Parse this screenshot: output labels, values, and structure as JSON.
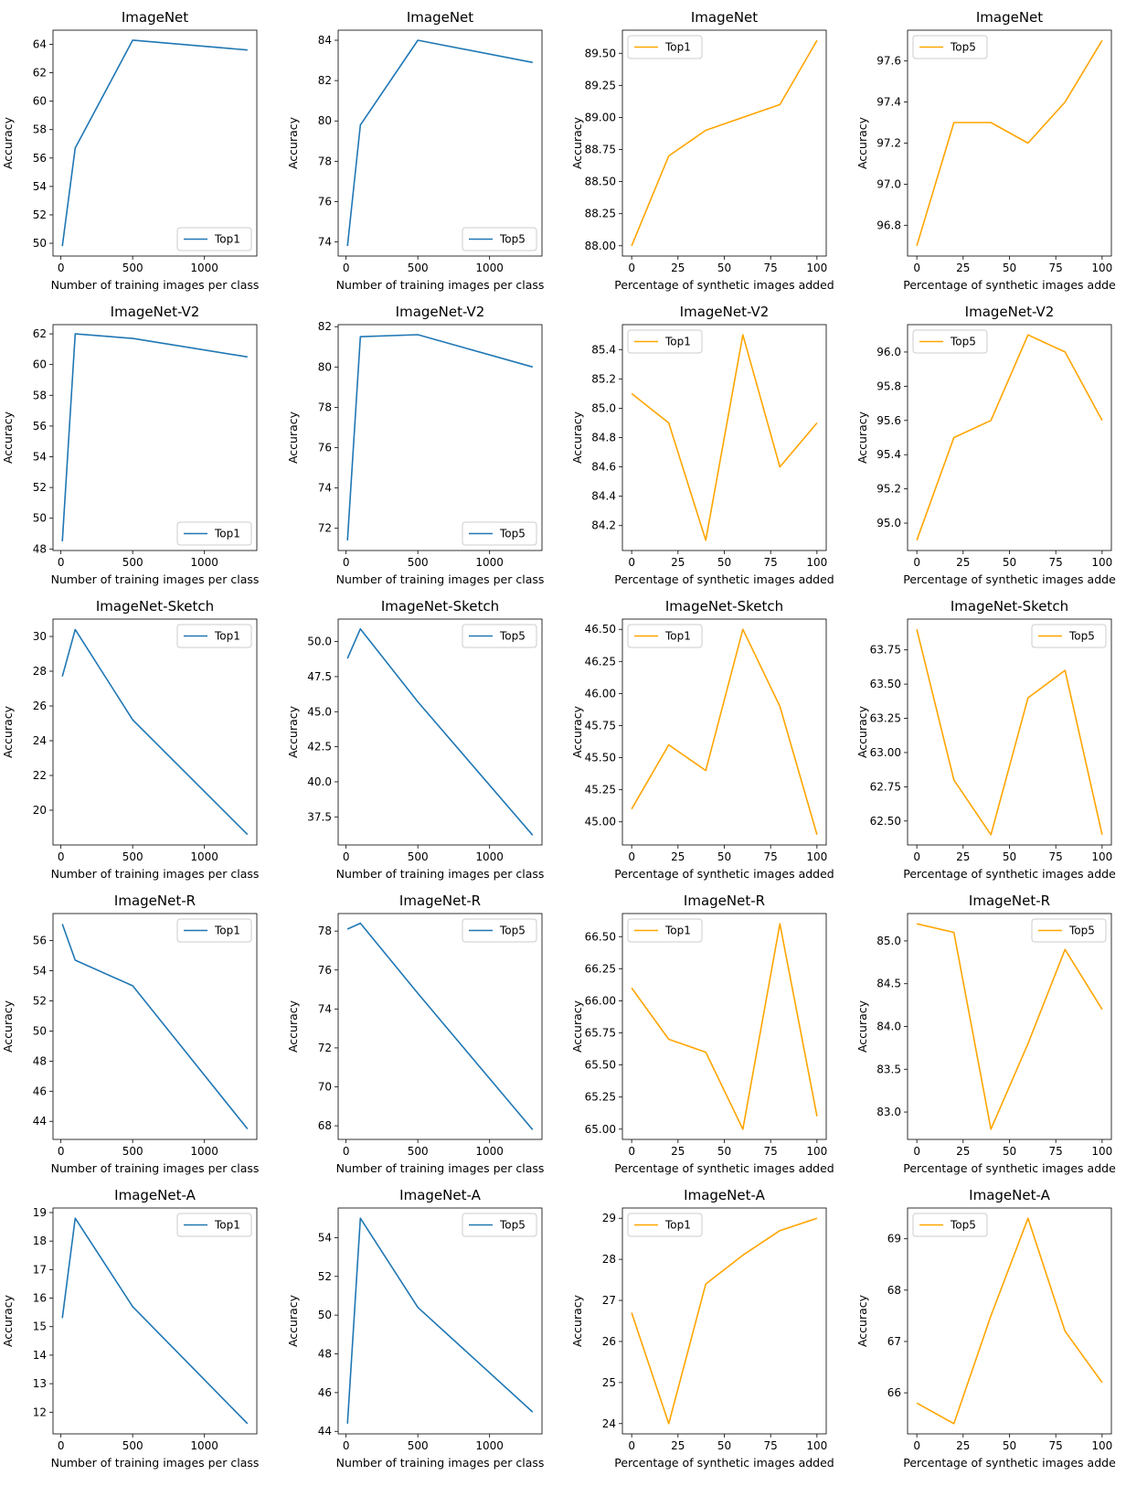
{
  "figure": {
    "colors": {
      "blue": "#1f77b4",
      "orange": "#ffa500"
    },
    "column_xlabels": [
      "Number of training images per class",
      "Number of training images per class",
      "Percentage of synthetic images added",
      "Percentage of synthetic images adde"
    ]
  },
  "chart_data": [
    {
      "type": "line",
      "title": "ImageNet",
      "xlabel": "Number of training images per class",
      "ylabel": "Accuracy",
      "x": [
        10,
        100,
        500,
        1300
      ],
      "series": [
        {
          "name": "Top1",
          "values": [
            49.8,
            56.7,
            64.3,
            63.6
          ]
        }
      ],
      "xlim": [
        -55,
        1365
      ],
      "xticks": [
        0,
        500,
        1000
      ],
      "ylim": [
        49.1,
        65.0
      ],
      "yticks": [
        50,
        52,
        54,
        56,
        58,
        60,
        62,
        64
      ],
      "legend": "lower right",
      "color": "blue"
    },
    {
      "type": "line",
      "title": "ImageNet",
      "xlabel": "Number of training images per class",
      "ylabel": "Accuracy",
      "x": [
        10,
        100,
        500,
        1300
      ],
      "series": [
        {
          "name": "Top5",
          "values": [
            73.8,
            79.8,
            84.0,
            82.9
          ]
        }
      ],
      "xlim": [
        -55,
        1365
      ],
      "xticks": [
        0,
        500,
        1000
      ],
      "ylim": [
        73.3,
        84.5
      ],
      "yticks": [
        74,
        76,
        78,
        80,
        82,
        84
      ],
      "legend": "lower right",
      "color": "blue"
    },
    {
      "type": "line",
      "title": "ImageNet",
      "xlabel": "Percentage of synthetic images added",
      "ylabel": "Accuracy",
      "x": [
        0,
        20,
        40,
        60,
        80,
        100
      ],
      "series": [
        {
          "name": "Top1",
          "values": [
            88.0,
            88.7,
            88.9,
            89.0,
            89.1,
            89.6
          ]
        }
      ],
      "xlim": [
        -5,
        105
      ],
      "xticks": [
        0,
        25,
        50,
        75,
        100
      ],
      "yticks_labels": [
        "88.00",
        "88.25",
        "88.50",
        "88.75",
        "89.00",
        "89.25",
        "89.50"
      ],
      "ylim": [
        87.92,
        89.68
      ],
      "yticks": [
        88.0,
        88.25,
        88.5,
        88.75,
        89.0,
        89.25,
        89.5
      ],
      "legend": "upper left",
      "color": "orange"
    },
    {
      "type": "line",
      "title": "ImageNet",
      "xlabel": "Percentage of synthetic images adde",
      "ylabel": "Accuracy",
      "x": [
        0,
        20,
        40,
        60,
        80,
        100
      ],
      "series": [
        {
          "name": "Top5",
          "values": [
            96.7,
            97.3,
            97.3,
            97.2,
            97.4,
            97.7
          ]
        }
      ],
      "xlim": [
        -5,
        105
      ],
      "xticks": [
        0,
        25,
        50,
        75,
        100
      ],
      "yticks_labels": [
        "96.8",
        "97.0",
        "97.2",
        "97.4",
        "97.6"
      ],
      "ylim": [
        96.65,
        97.75
      ],
      "yticks": [
        96.8,
        97.0,
        97.2,
        97.4,
        97.6
      ],
      "legend": "upper left",
      "color": "orange"
    },
    {
      "type": "line",
      "title": "ImageNet-V2",
      "xlabel": "Number of training images per class",
      "ylabel": "Accuracy",
      "x": [
        10,
        100,
        500,
        1300
      ],
      "series": [
        {
          "name": "Top1",
          "values": [
            48.5,
            62.0,
            61.7,
            60.5
          ]
        }
      ],
      "xlim": [
        -55,
        1365
      ],
      "xticks": [
        0,
        500,
        1000
      ],
      "ylim": [
        47.9,
        62.6
      ],
      "yticks": [
        48,
        50,
        52,
        54,
        56,
        58,
        60,
        62
      ],
      "legend": "lower right",
      "color": "blue"
    },
    {
      "type": "line",
      "title": "ImageNet-V2",
      "xlabel": "Number of training images per class",
      "ylabel": "Accuracy",
      "x": [
        10,
        100,
        500,
        1300
      ],
      "series": [
        {
          "name": "Top5",
          "values": [
            71.4,
            81.5,
            81.6,
            80.0
          ]
        }
      ],
      "xlim": [
        -55,
        1365
      ],
      "xticks": [
        0,
        500,
        1000
      ],
      "ylim": [
        70.9,
        82.1
      ],
      "yticks": [
        72,
        74,
        76,
        78,
        80,
        82
      ],
      "legend": "lower right",
      "color": "blue"
    },
    {
      "type": "line",
      "title": "ImageNet-V2",
      "xlabel": "Percentage of synthetic images added",
      "ylabel": "Accuracy",
      "x": [
        0,
        20,
        40,
        60,
        80,
        100
      ],
      "series": [
        {
          "name": "Top1",
          "values": [
            85.1,
            84.9,
            84.1,
            85.5,
            84.6,
            84.9
          ]
        }
      ],
      "xlim": [
        -5,
        105
      ],
      "xticks": [
        0,
        25,
        50,
        75,
        100
      ],
      "yticks_labels": [
        "84.2",
        "84.4",
        "84.6",
        "84.8",
        "85.0",
        "85.2",
        "85.4"
      ],
      "ylim": [
        84.03,
        85.57
      ],
      "yticks": [
        84.2,
        84.4,
        84.6,
        84.8,
        85.0,
        85.2,
        85.4
      ],
      "legend": "upper left",
      "color": "orange"
    },
    {
      "type": "line",
      "title": "ImageNet-V2",
      "xlabel": "Percentage of synthetic images adde",
      "ylabel": "Accuracy",
      "x": [
        0,
        20,
        40,
        60,
        80,
        100
      ],
      "series": [
        {
          "name": "Top5",
          "values": [
            94.9,
            95.5,
            95.6,
            96.1,
            96.0,
            95.6
          ]
        }
      ],
      "xlim": [
        -5,
        105
      ],
      "xticks": [
        0,
        25,
        50,
        75,
        100
      ],
      "yticks_labels": [
        "95.0",
        "95.2",
        "95.4",
        "95.6",
        "95.8",
        "96.0"
      ],
      "ylim": [
        94.84,
        96.16
      ],
      "yticks": [
        95.0,
        95.2,
        95.4,
        95.6,
        95.8,
        96.0
      ],
      "legend": "upper left",
      "color": "orange"
    },
    {
      "type": "line",
      "title": "ImageNet-Sketch",
      "xlabel": "Number of training images per class",
      "ylabel": "Accuracy",
      "x": [
        10,
        100,
        500,
        1300
      ],
      "series": [
        {
          "name": "Top1",
          "values": [
            27.7,
            30.4,
            25.2,
            18.6
          ]
        }
      ],
      "xlim": [
        -55,
        1365
      ],
      "xticks": [
        0,
        500,
        1000
      ],
      "ylim": [
        18.0,
        31.0
      ],
      "yticks": [
        20,
        22,
        24,
        26,
        28,
        30
      ],
      "legend": "upper right",
      "color": "blue"
    },
    {
      "type": "line",
      "title": "ImageNet-Sketch",
      "xlabel": "Number of training images per class",
      "ylabel": "Accuracy",
      "x": [
        10,
        100,
        500,
        1300
      ],
      "series": [
        {
          "name": "Top5",
          "values": [
            48.8,
            50.9,
            45.7,
            36.2
          ]
        }
      ],
      "xlim": [
        -55,
        1365
      ],
      "xticks": [
        0,
        500,
        1000
      ],
      "yticks_labels": [
        "37.5",
        "40.0",
        "42.5",
        "45.0",
        "47.5",
        "50.0"
      ],
      "ylim": [
        35.5,
        51.6
      ],
      "yticks": [
        37.5,
        40.0,
        42.5,
        45.0,
        47.5,
        50.0
      ],
      "legend": "upper right",
      "color": "blue"
    },
    {
      "type": "line",
      "title": "ImageNet-Sketch",
      "xlabel": "Percentage of synthetic images added",
      "ylabel": "Accuracy",
      "x": [
        0,
        20,
        40,
        60,
        80,
        100
      ],
      "series": [
        {
          "name": "Top1",
          "values": [
            45.1,
            45.6,
            45.4,
            46.5,
            45.9,
            44.9
          ]
        }
      ],
      "xlim": [
        -5,
        105
      ],
      "xticks": [
        0,
        25,
        50,
        75,
        100
      ],
      "yticks_labels": [
        "45.00",
        "45.25",
        "45.50",
        "45.75",
        "46.00",
        "46.25",
        "46.50"
      ],
      "ylim": [
        44.82,
        46.58
      ],
      "yticks": [
        45.0,
        45.25,
        45.5,
        45.75,
        46.0,
        46.25,
        46.5
      ],
      "legend": "upper left",
      "color": "orange"
    },
    {
      "type": "line",
      "title": "ImageNet-Sketch",
      "xlabel": "Percentage of synthetic images adde",
      "ylabel": "Accuracy",
      "x": [
        0,
        20,
        40,
        60,
        80,
        100
      ],
      "series": [
        {
          "name": "Top5",
          "values": [
            63.9,
            62.8,
            62.4,
            63.4,
            63.6,
            62.4
          ]
        }
      ],
      "xlim": [
        -5,
        105
      ],
      "xticks": [
        0,
        25,
        50,
        75,
        100
      ],
      "yticks_labels": [
        "62.50",
        "62.75",
        "63.00",
        "63.25",
        "63.50",
        "63.75"
      ],
      "ylim": [
        62.325,
        63.975
      ],
      "yticks": [
        62.5,
        62.75,
        63.0,
        63.25,
        63.5,
        63.75
      ],
      "legend": "upper right",
      "color": "orange"
    },
    {
      "type": "line",
      "title": "ImageNet-R",
      "xlabel": "Number of training images per class",
      "ylabel": "Accuracy",
      "x": [
        10,
        100,
        500,
        1300
      ],
      "series": [
        {
          "name": "Top1",
          "values": [
            57.1,
            54.7,
            53.0,
            43.5
          ]
        }
      ],
      "xlim": [
        -55,
        1365
      ],
      "xticks": [
        0,
        500,
        1000
      ],
      "ylim": [
        42.8,
        57.8
      ],
      "yticks": [
        44,
        46,
        48,
        50,
        52,
        54,
        56
      ],
      "legend": "upper right",
      "color": "blue"
    },
    {
      "type": "line",
      "title": "ImageNet-R",
      "xlabel": "Number of training images per class",
      "ylabel": "Accuracy",
      "x": [
        10,
        100,
        500,
        1300
      ],
      "series": [
        {
          "name": "Top5",
          "values": [
            78.1,
            78.4,
            74.8,
            67.8
          ]
        }
      ],
      "xlim": [
        -55,
        1365
      ],
      "xticks": [
        0,
        500,
        1000
      ],
      "ylim": [
        67.3,
        78.9
      ],
      "yticks": [
        68,
        70,
        72,
        74,
        76,
        78
      ],
      "legend": "upper right",
      "color": "blue"
    },
    {
      "type": "line",
      "title": "ImageNet-R",
      "xlabel": "Percentage of synthetic images added",
      "ylabel": "Accuracy",
      "x": [
        0,
        20,
        40,
        60,
        80,
        100
      ],
      "series": [
        {
          "name": "Top1",
          "values": [
            66.1,
            65.7,
            65.6,
            65.0,
            66.6,
            65.1
          ]
        }
      ],
      "xlim": [
        -5,
        105
      ],
      "xticks": [
        0,
        25,
        50,
        75,
        100
      ],
      "yticks_labels": [
        "65.00",
        "65.25",
        "65.50",
        "65.75",
        "66.00",
        "66.25",
        "66.50"
      ],
      "ylim": [
        64.92,
        66.68
      ],
      "yticks": [
        65.0,
        65.25,
        65.5,
        65.75,
        66.0,
        66.25,
        66.5
      ],
      "legend": "upper left",
      "color": "orange"
    },
    {
      "type": "line",
      "title": "ImageNet-R",
      "xlabel": "Percentage of synthetic images adde",
      "ylabel": "Accuracy",
      "x": [
        0,
        20,
        40,
        60,
        80,
        100
      ],
      "series": [
        {
          "name": "Top5",
          "values": [
            85.2,
            85.1,
            82.8,
            83.8,
            84.9,
            84.2
          ]
        }
      ],
      "xlim": [
        -5,
        105
      ],
      "xticks": [
        0,
        25,
        50,
        75,
        100
      ],
      "yticks_labels": [
        "83.0",
        "83.5",
        "84.0",
        "84.5",
        "85.0"
      ],
      "ylim": [
        82.68,
        85.32
      ],
      "yticks": [
        83.0,
        83.5,
        84.0,
        84.5,
        85.0
      ],
      "legend": "upper right",
      "color": "orange"
    },
    {
      "type": "line",
      "title": "ImageNet-A",
      "xlabel": "Number of training images per class",
      "ylabel": "Accuracy",
      "x": [
        10,
        100,
        500,
        1300
      ],
      "series": [
        {
          "name": "Top1",
          "values": [
            15.3,
            18.8,
            15.7,
            11.6
          ]
        }
      ],
      "xlim": [
        -55,
        1365
      ],
      "xticks": [
        0,
        500,
        1000
      ],
      "ylim": [
        11.24,
        19.16
      ],
      "yticks": [
        12,
        13,
        14,
        15,
        16,
        17,
        18,
        19
      ],
      "legend": "upper right",
      "color": "blue"
    },
    {
      "type": "line",
      "title": "ImageNet-A",
      "xlabel": "Number of training images per class",
      "ylabel": "Accuracy",
      "x": [
        10,
        100,
        500,
        1300
      ],
      "series": [
        {
          "name": "Top5",
          "values": [
            44.4,
            55.0,
            50.4,
            45.0
          ]
        }
      ],
      "xlim": [
        -55,
        1365
      ],
      "xticks": [
        0,
        500,
        1000
      ],
      "ylim": [
        43.87,
        55.53
      ],
      "yticks": [
        44,
        46,
        48,
        50,
        52,
        54
      ],
      "legend": "upper right",
      "color": "blue"
    },
    {
      "type": "line",
      "title": "ImageNet-A",
      "xlabel": "Percentage of synthetic images added",
      "ylabel": "Accuracy",
      "x": [
        0,
        20,
        40,
        60,
        80,
        100
      ],
      "series": [
        {
          "name": "Top1",
          "values": [
            26.7,
            24.0,
            27.4,
            28.1,
            28.7,
            29.0
          ]
        }
      ],
      "xlim": [
        -5,
        105
      ],
      "xticks": [
        0,
        25,
        50,
        75,
        100
      ],
      "ylim": [
        23.75,
        29.25
      ],
      "yticks": [
        24,
        25,
        26,
        27,
        28,
        29
      ],
      "legend": "upper left",
      "color": "orange"
    },
    {
      "type": "line",
      "title": "ImageNet-A",
      "xlabel": "Percentage of synthetic images adde",
      "ylabel": "Accuracy",
      "x": [
        0,
        20,
        40,
        60,
        80,
        100
      ],
      "series": [
        {
          "name": "Top5",
          "values": [
            65.8,
            65.4,
            67.5,
            69.4,
            67.2,
            66.2
          ]
        }
      ],
      "xlim": [
        -5,
        105
      ],
      "xticks": [
        0,
        25,
        50,
        75,
        100
      ],
      "ylim": [
        65.2,
        69.6
      ],
      "yticks": [
        66,
        67,
        68,
        69
      ],
      "legend": "upper left",
      "color": "orange"
    }
  ]
}
